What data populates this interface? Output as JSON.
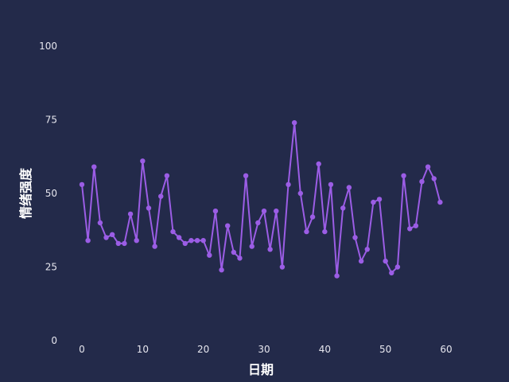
{
  "chart_data": {
    "type": "line",
    "xlabel": "日期",
    "ylabel": "情绪强度",
    "xlim": [
      -2,
      70
    ],
    "ylim": [
      0,
      100
    ],
    "xticks": [
      0,
      10,
      20,
      30,
      40,
      50,
      60
    ],
    "yticks": [
      0,
      25,
      50,
      75,
      100
    ],
    "grid": false,
    "colors": {
      "background": "#232a4a",
      "line": "#9b5de5",
      "text": "#e6e6ee"
    },
    "series": [
      {
        "x": [
          0,
          1,
          2,
          3,
          4,
          5,
          6,
          7,
          8,
          9,
          10,
          11,
          12,
          13,
          14,
          15,
          16,
          17,
          18,
          19,
          20,
          21,
          22,
          23,
          24,
          25,
          26,
          27,
          28,
          29,
          30,
          31,
          32,
          33,
          34,
          35,
          36,
          37,
          38,
          39,
          40,
          41,
          42,
          43,
          44,
          45,
          46,
          47,
          48,
          49,
          50,
          51,
          52,
          53,
          54,
          55,
          56,
          57,
          58,
          59
        ],
        "values": [
          53,
          34,
          59,
          40,
          35,
          36,
          33,
          33,
          43,
          34,
          61,
          45,
          32,
          49,
          56,
          37,
          35,
          33,
          34,
          34,
          34,
          29,
          44,
          24,
          39,
          30,
          28,
          56,
          32,
          40,
          44,
          31,
          44,
          25,
          53,
          74,
          50,
          37,
          42,
          60,
          37,
          53,
          22,
          45,
          52,
          35,
          27,
          31,
          47,
          48,
          27,
          23,
          25,
          56,
          38,
          39,
          54,
          59,
          55,
          47
        ]
      }
    ]
  }
}
